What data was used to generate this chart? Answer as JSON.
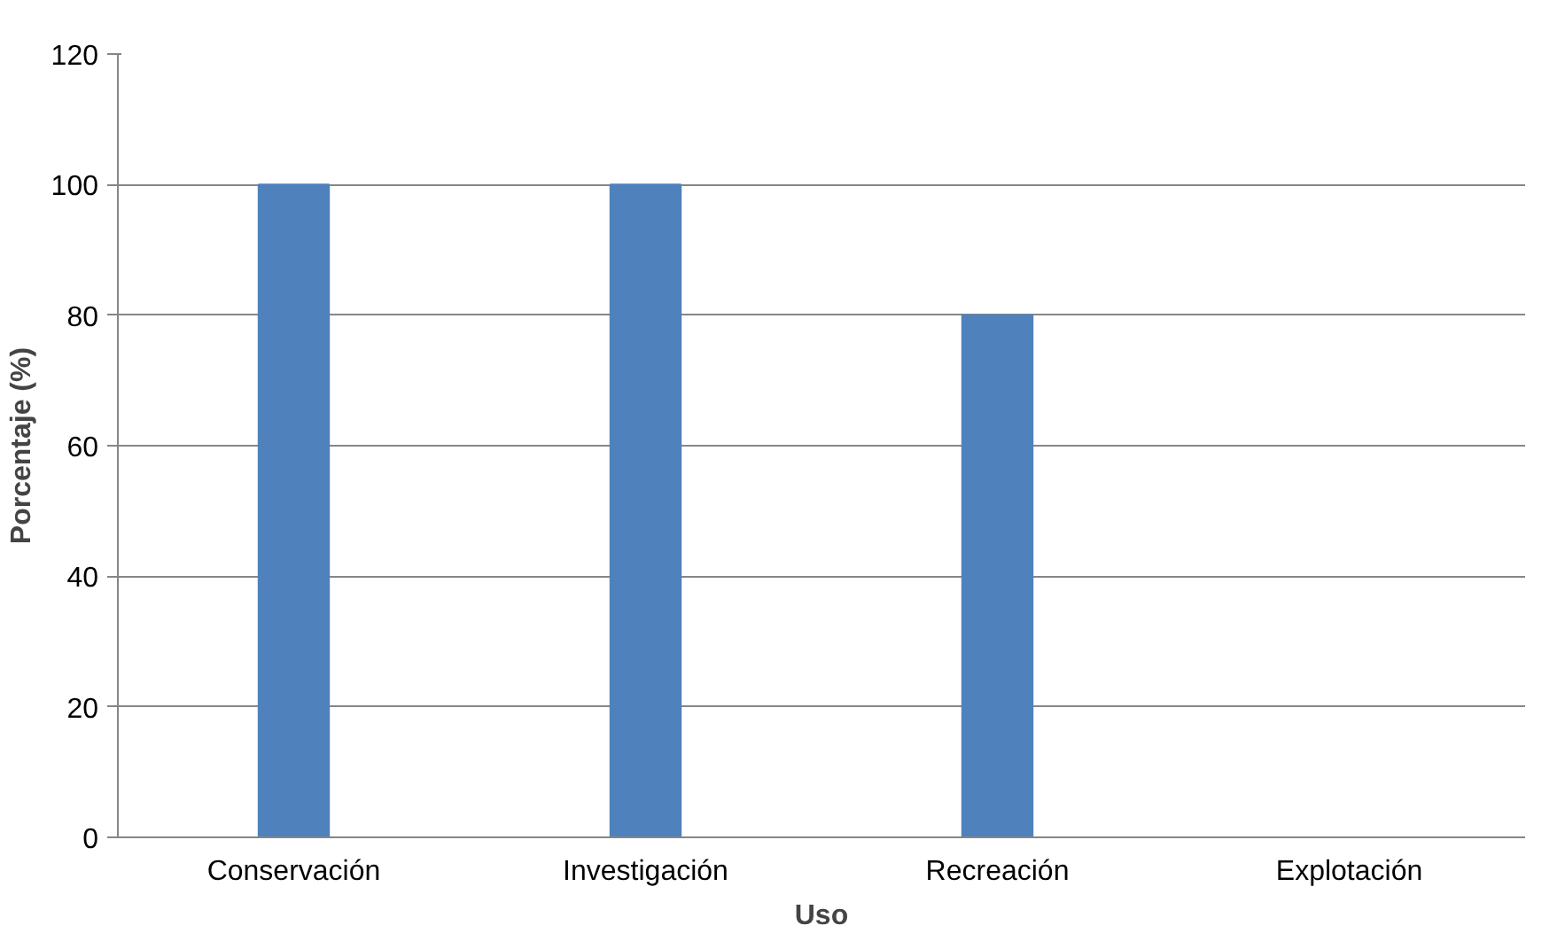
{
  "chart_data": {
    "type": "bar",
    "xlabel": "Uso",
    "ylabel": "Porcentaje (%)",
    "categories": [
      "Conservación",
      "Investigación",
      "Recreación",
      "Explotación"
    ],
    "values": [
      100,
      100,
      80,
      0
    ],
    "color": "#4f81bd",
    "ylim": [
      0,
      120
    ],
    "yticks": [
      0,
      20,
      40,
      60,
      80,
      100,
      120
    ],
    "grid": "y"
  }
}
